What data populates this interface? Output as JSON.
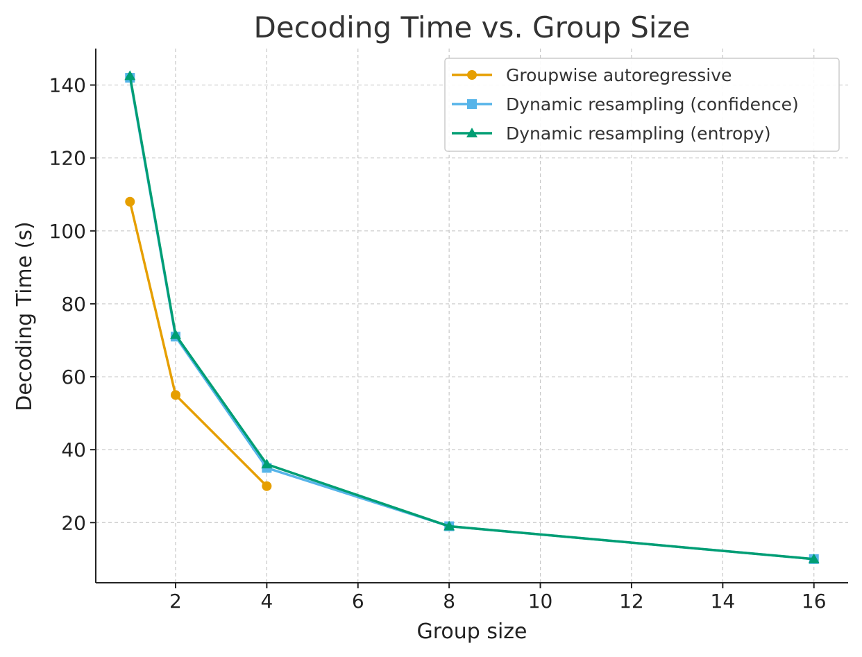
{
  "chart_data": {
    "type": "line",
    "title": "Decoding Time vs. Group Size",
    "xlabel": "Group size",
    "ylabel": "Decoding Time (s)",
    "xlim": [
      0.25,
      16.75
    ],
    "ylim": [
      3.5,
      150
    ],
    "xticks": [
      2,
      4,
      6,
      8,
      10,
      12,
      14,
      16
    ],
    "yticks": [
      20,
      40,
      60,
      80,
      100,
      120,
      140
    ],
    "grid": true,
    "legend_position": "top-right",
    "series": [
      {
        "name": "Groupwise autoregressive",
        "color": "#E69F00",
        "marker": "circle",
        "x": [
          1,
          2,
          4
        ],
        "y": [
          108,
          55,
          30
        ]
      },
      {
        "name": "Dynamic resampling (confidence)",
        "color": "#56B4E9",
        "marker": "square",
        "x": [
          1,
          2,
          4,
          8,
          16
        ],
        "y": [
          142,
          71,
          35,
          19,
          10
        ]
      },
      {
        "name": "Dynamic resampling (entropy)",
        "color": "#009E73",
        "marker": "triangle",
        "x": [
          1,
          2,
          4,
          8,
          16
        ],
        "y": [
          142.5,
          71.5,
          36,
          19,
          10
        ]
      }
    ]
  }
}
